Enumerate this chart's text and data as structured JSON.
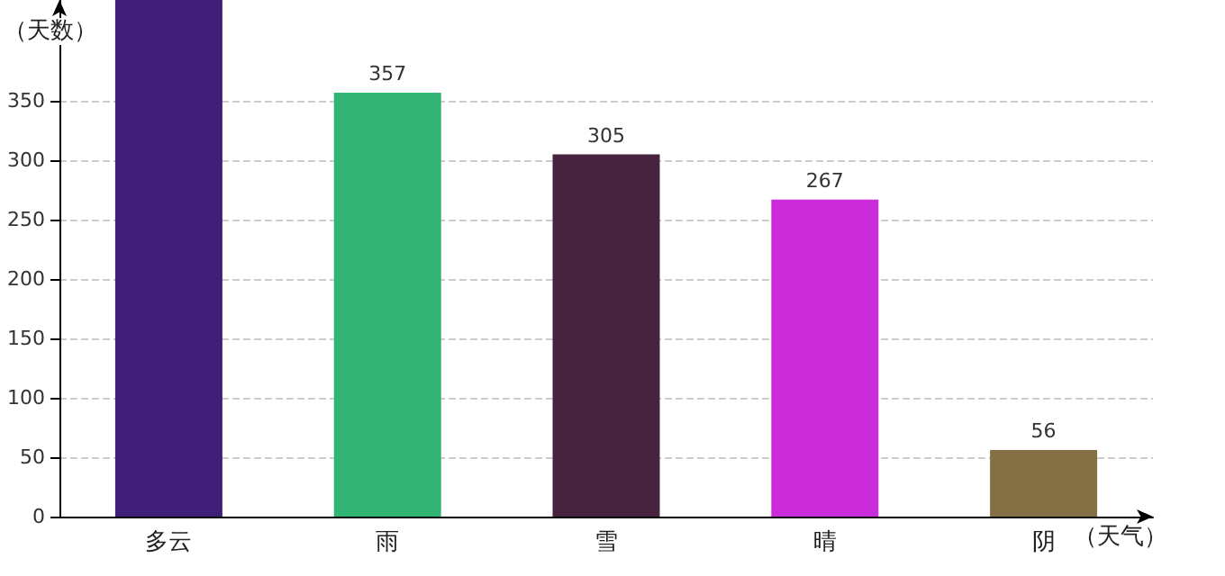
{
  "chart_data": {
    "type": "bar",
    "xlabel": "（天气）",
    "ylabel": "（天数）",
    "categories": [
      "多云",
      "雨",
      "雪",
      "晴",
      "阴"
    ],
    "values": [
      435,
      357,
      305,
      267,
      56
    ],
    "colors": [
      "#3f1f77",
      "#32b574",
      "#47233f",
      "#cb2cd9",
      "#857045"
    ],
    "value_labels": [
      null,
      "357",
      "305",
      "267",
      "56"
    ],
    "ylim": [
      0,
      435
    ],
    "yticks": [
      0,
      50,
      100,
      150,
      200,
      250,
      300,
      350
    ],
    "grid": "y"
  }
}
